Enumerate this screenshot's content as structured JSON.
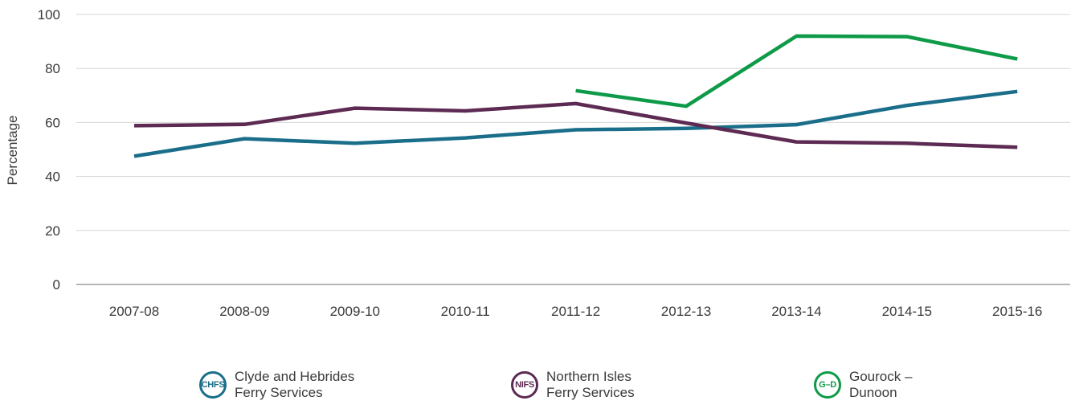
{
  "chart_data": {
    "type": "line",
    "ylabel": "Percentage",
    "xlabel": "",
    "ylim": [
      0,
      100
    ],
    "yticks": [
      0,
      20,
      40,
      60,
      80,
      100
    ],
    "categories": [
      "2007-08",
      "2008-09",
      "2009-10",
      "2010-11",
      "2011-12",
      "2012-13",
      "2013-14",
      "2014-15",
      "2015-16"
    ],
    "grid": true,
    "legend_position": "bottom",
    "series": [
      {
        "name": "Clyde and Hebrides Ferry Services",
        "color": "#1a6e8a",
        "values": [
          47.5,
          54,
          52.3,
          54.3,
          57.3,
          57.8,
          59.2,
          66.3,
          71.5
        ]
      },
      {
        "name": "Northern Isles Ferry Services",
        "color": "#5c2a52",
        "values": [
          58.8,
          59.3,
          65.3,
          64.3,
          67,
          59.8,
          52.8,
          52.3,
          50.8
        ]
      },
      {
        "name": "Gourock – Dunoon",
        "color": "#0e9a48",
        "values": [
          null,
          null,
          null,
          null,
          71.8,
          66,
          92,
          91.8,
          83.5
        ]
      }
    ]
  },
  "legend": [
    {
      "badge": "CHFS",
      "line1": "Clyde and Hebrides",
      "line2": "Ferry Services",
      "color": "#1a6e8a"
    },
    {
      "badge": "NIFS",
      "line1": "Northern Isles",
      "line2": "Ferry Services",
      "color": "#5c2a52"
    },
    {
      "badge": "G–D",
      "line1": "Gourock –",
      "line2": "Dunoon",
      "color": "#0e9a48"
    }
  ]
}
